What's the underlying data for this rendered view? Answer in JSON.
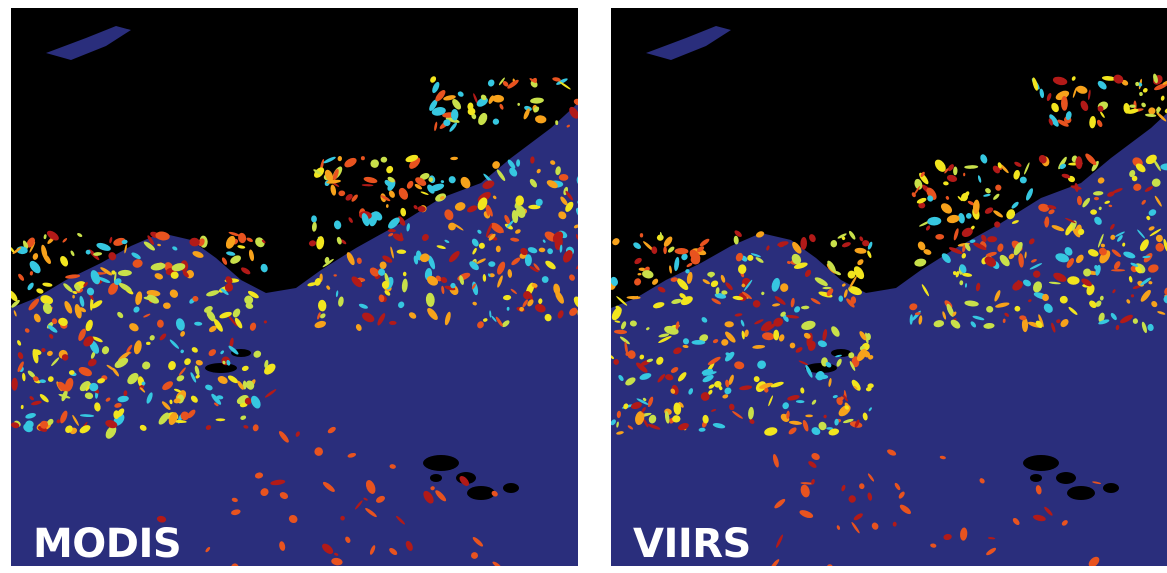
{
  "colors": {
    "background": "#2a2e7c",
    "no_data": "#000000",
    "scale": [
      "#36c7e0",
      "#c8e04a",
      "#f2e51e",
      "#f7a21b",
      "#e8531f",
      "#b21a18"
    ]
  },
  "panels": [
    {
      "label": "MODIS"
    },
    {
      "label": "VIIRS"
    }
  ]
}
